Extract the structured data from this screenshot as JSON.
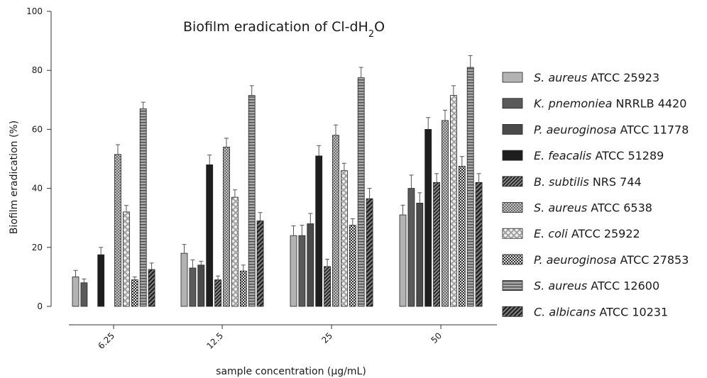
{
  "chart_data": {
    "type": "bar",
    "title_main": "Biofilm eradication of Cl-dH",
    "title_sub": "2",
    "title_tail": "O",
    "xlabel": "sample concentration (µg/mL)",
    "ylabel": "Biofilm eradication (%)",
    "ylim": [
      0,
      100
    ],
    "yticks": [
      "0",
      "20",
      "40",
      "60",
      "80",
      "100"
    ],
    "categories": [
      "6.25",
      "12.5",
      "25",
      "50"
    ],
    "legend_position": "right",
    "series": [
      {
        "name_italic": "S. aureus",
        "name_rest": " ATCC 25923",
        "fill": "#b3b3b3",
        "pattern": "solid",
        "values": [
          10,
          18,
          24,
          31
        ],
        "errors": [
          2.2,
          3,
          3.3,
          3.3
        ]
      },
      {
        "name_italic": "K. pnemoniea",
        "name_rest": " NRRLB 4420",
        "fill": "#5a5a5a",
        "pattern": "solid",
        "values": [
          8,
          13,
          24,
          40
        ],
        "errors": [
          1.3,
          2.8,
          3.5,
          4.5
        ]
      },
      {
        "name_italic": "P. aeuroginosa",
        "name_rest": " ATCC 11778",
        "fill": "#4a4a4a",
        "pattern": "solid",
        "values": [
          0,
          14,
          28,
          35
        ],
        "errors": [
          0,
          1.3,
          3.5,
          3.5
        ]
      },
      {
        "name_italic": "E. feacalis",
        "name_rest": " ATCC 51289",
        "fill": "#1e1e1e",
        "pattern": "solid",
        "values": [
          17.5,
          48,
          51,
          60
        ],
        "errors": [
          2.5,
          3.3,
          3.5,
          4
        ]
      },
      {
        "name_italic": "B. subtilis",
        "name_rest": " NRS 744",
        "fill": "#555555",
        "pattern": "diag",
        "values": [
          0,
          9,
          13.5,
          42
        ],
        "errors": [
          0,
          1.3,
          2.5,
          3
        ]
      },
      {
        "name_italic": "S. aureus",
        "name_rest": " ATCC 6538",
        "fill": "#999999",
        "pattern": "dots",
        "values": [
          51.5,
          54,
          58,
          63
        ],
        "errors": [
          3.3,
          3,
          3.5,
          3.5
        ]
      },
      {
        "name_italic": "E. coli",
        "name_rest": " ATCC 25922",
        "fill": "#cccccc",
        "pattern": "cross",
        "values": [
          32,
          37,
          46,
          71.5
        ],
        "errors": [
          2.2,
          2.5,
          2.5,
          3.3
        ]
      },
      {
        "name_italic": "P. aeuroginosa",
        "name_rest": " ATCC 27853",
        "fill": "#444444",
        "pattern": "check",
        "values": [
          9,
          12,
          27.5,
          47.5
        ],
        "errors": [
          1,
          2,
          2.2,
          3.3
        ]
      },
      {
        "name_italic": "S. aureus",
        "name_rest": " ATCC 12600",
        "fill": "#8c8c8c",
        "pattern": "hlines",
        "values": [
          67,
          71.5,
          77.5,
          81
        ],
        "errors": [
          2.2,
          3.3,
          3.5,
          4
        ]
      },
      {
        "name_italic": "C. albicans",
        "name_rest": " ATCC 10231",
        "fill": "#3a3a3a",
        "pattern": "diag2",
        "values": [
          12.5,
          29,
          36.5,
          42
        ],
        "errors": [
          2.2,
          2.8,
          3.5,
          3
        ]
      }
    ]
  }
}
